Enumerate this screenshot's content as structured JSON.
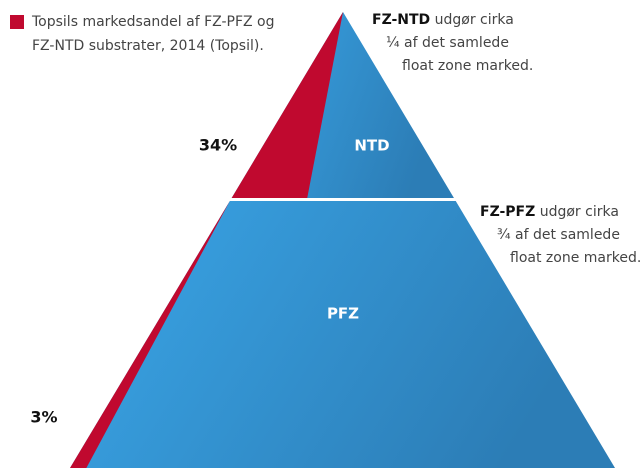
{
  "chart_data": {
    "type": "pyramid",
    "categories": [
      "NTD",
      "PFZ"
    ],
    "values": [
      34,
      3
    ],
    "value_labels": [
      "34%",
      "3%"
    ],
    "color": "#3a9ee0",
    "share_color": "#c0092f",
    "legend_lines": [
      "Topsils markedsandel af FZ-PFZ og",
      "FZ-NTD substrater, 2014 (Topsil)."
    ],
    "annotations": [
      {
        "highlight": "FZ-NTD",
        "lines": [
          "udgør cirka",
          "¼ af det samlede",
          "float zone marked."
        ]
      },
      {
        "highlight": "FZ-PFZ",
        "lines": [
          "udgør cirka",
          "¾ af det samlede",
          "float zone marked."
        ]
      }
    ]
  }
}
